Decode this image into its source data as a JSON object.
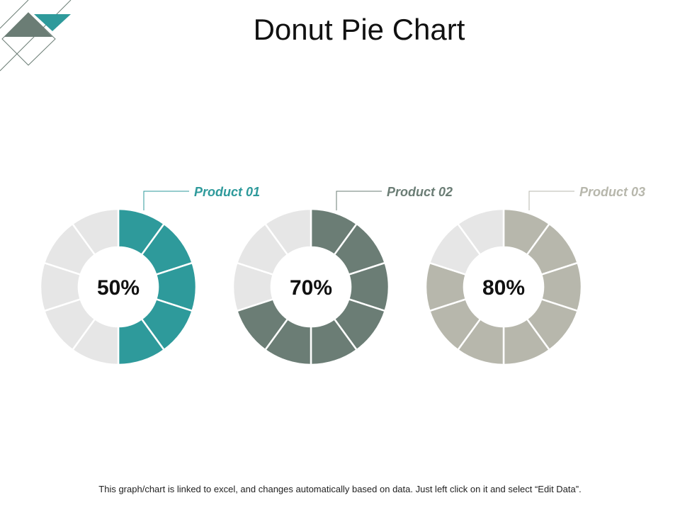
{
  "title": "Donut Pie Chart",
  "footnote": "This graph/chart is linked to excel, and changes automatically based on data. Just left click on it and select “Edit Data”.",
  "colors": {
    "empty_segment": "#e6e6e6",
    "deco_teal": "#2e9a9b",
    "deco_gray": "#6b7d75"
  },
  "chart_data": [
    {
      "type": "pie",
      "variant": "donut",
      "segments": 10,
      "series": [
        {
          "name": "Product 01",
          "value": 50
        }
      ],
      "value_label": "50%",
      "color": "#2e9a9b"
    },
    {
      "type": "pie",
      "variant": "donut",
      "segments": 10,
      "series": [
        {
          "name": "Product 02",
          "value": 70
        }
      ],
      "value_label": "70%",
      "color": "#6b7d75"
    },
    {
      "type": "pie",
      "variant": "donut",
      "segments": 10,
      "series": [
        {
          "name": "Product 03",
          "value": 80
        }
      ],
      "value_label": "80%",
      "color": "#b7b7ac"
    }
  ]
}
